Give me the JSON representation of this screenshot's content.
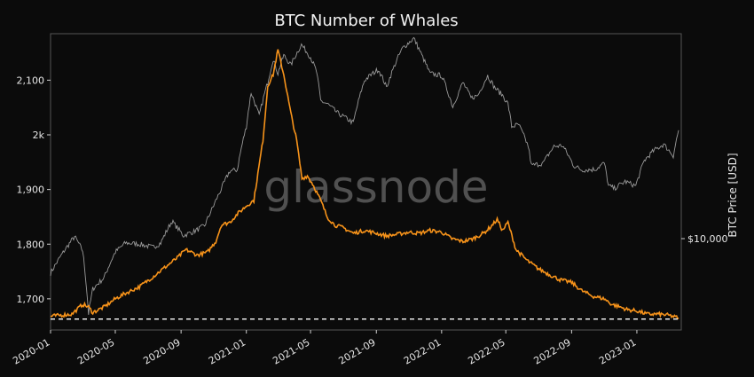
{
  "chart_data": {
    "type": "line",
    "title": "BTC Number of Whales",
    "watermark": "glassnode",
    "xlabel": "",
    "ylabel_left": "",
    "ylabel_right": "BTC Price [USD]",
    "right_ticks": [
      {
        "value": 10000,
        "label": "$10,000"
      }
    ],
    "x_ticks": [
      "2020-01",
      "2020-05",
      "2020-09",
      "2021-01",
      "2021-05",
      "2021-09",
      "2022-01",
      "2022-05",
      "2022-09",
      "2023-01"
    ],
    "y_ticks": [
      {
        "value": 1700,
        "label": "1,700"
      },
      {
        "value": 1800,
        "label": "1,800"
      },
      {
        "value": 1900,
        "label": "1,900"
      },
      {
        "value": 2000,
        "label": "2k"
      },
      {
        "value": 2100,
        "label": "2,100"
      }
    ],
    "ylim": [
      1643,
      2185
    ],
    "xlim": [
      "2020-01-01",
      "2023-03-25"
    ],
    "price_ylim": [
      4200,
      70000
    ],
    "price_scale": "log",
    "grid": false,
    "colors": {
      "whales": "#f7931a",
      "price": "#9a9a9a",
      "baseline": "#ffffff",
      "frame": "#555555"
    },
    "baseline_value": 1663,
    "series": [
      {
        "name": "",
        "role": "whales",
        "x": [
          "2020-01-01",
          "2020-01-20",
          "2020-02-10",
          "2020-03-01",
          "2020-03-12",
          "2020-03-20",
          "2020-04-10",
          "2020-05-01",
          "2020-05-20",
          "2020-06-15",
          "2020-07-10",
          "2020-08-05",
          "2020-08-25",
          "2020-09-10",
          "2020-10-01",
          "2020-10-20",
          "2020-11-05",
          "2020-11-15",
          "2020-12-01",
          "2020-12-15",
          "2021-01-01",
          "2021-01-15",
          "2021-02-01",
          "2021-02-10",
          "2021-02-20",
          "2021-03-01",
          "2021-03-12",
          "2021-03-25",
          "2021-04-05",
          "2021-04-15",
          "2021-04-25",
          "2021-05-05",
          "2021-05-20",
          "2021-06-01",
          "2021-06-15",
          "2021-07-01",
          "2021-07-20",
          "2021-08-10",
          "2021-09-01",
          "2021-09-20",
          "2021-10-10",
          "2021-11-01",
          "2021-11-20",
          "2021-12-10",
          "2022-01-01",
          "2022-01-20",
          "2022-02-10",
          "2022-03-01",
          "2022-03-20",
          "2022-04-01",
          "2022-04-15",
          "2022-04-25",
          "2022-05-05",
          "2022-05-20",
          "2022-06-10",
          "2022-07-01",
          "2022-07-20",
          "2022-08-10",
          "2022-09-01",
          "2022-09-20",
          "2022-10-10",
          "2022-11-01",
          "2022-11-15",
          "2022-12-01",
          "2022-12-15",
          "2023-01-01",
          "2023-01-20",
          "2023-02-10",
          "2023-03-01",
          "2023-03-20"
        ],
        "values": [
          1668,
          1670,
          1672,
          1690,
          1685,
          1675,
          1685,
          1700,
          1710,
          1722,
          1740,
          1760,
          1775,
          1790,
          1780,
          1785,
          1805,
          1835,
          1840,
          1855,
          1870,
          1880,
          1990,
          2090,
          2110,
          2155,
          2110,
          2040,
          1990,
          1920,
          1925,
          1910,
          1880,
          1850,
          1835,
          1830,
          1820,
          1825,
          1820,
          1815,
          1818,
          1822,
          1820,
          1825,
          1822,
          1810,
          1805,
          1810,
          1820,
          1830,
          1845,
          1825,
          1840,
          1790,
          1770,
          1755,
          1745,
          1735,
          1730,
          1715,
          1705,
          1700,
          1690,
          1685,
          1680,
          1678,
          1672,
          1672,
          1670,
          1665
        ]
      },
      {
        "name": "",
        "role": "price",
        "x": [
          "2020-01-01",
          "2020-02-15",
          "2020-03-01",
          "2020-03-12",
          "2020-03-20",
          "2020-04-10",
          "2020-05-01",
          "2020-05-20",
          "2020-06-15",
          "2020-07-10",
          "2020-07-25",
          "2020-08-15",
          "2020-09-05",
          "2020-09-25",
          "2020-10-15",
          "2020-11-01",
          "2020-11-15",
          "2020-12-01",
          "2020-12-15",
          "2021-01-01",
          "2021-01-10",
          "2021-01-25",
          "2021-02-10",
          "2021-02-20",
          "2021-03-01",
          "2021-03-12",
          "2021-03-25",
          "2021-04-14",
          "2021-05-01",
          "2021-05-12",
          "2021-05-20",
          "2021-06-01",
          "2021-06-20",
          "2021-07-20",
          "2021-08-10",
          "2021-09-05",
          "2021-09-20",
          "2021-10-10",
          "2021-10-20",
          "2021-11-10",
          "2021-11-25",
          "2021-12-10",
          "2022-01-01",
          "2022-01-22",
          "2022-02-10",
          "2022-02-25",
          "2022-03-10",
          "2022-03-28",
          "2022-04-10",
          "2022-04-25",
          "2022-05-05",
          "2022-05-12",
          "2022-05-25",
          "2022-06-12",
          "2022-06-18",
          "2022-07-10",
          "2022-07-30",
          "2022-08-15",
          "2022-09-05",
          "2022-09-20",
          "2022-10-15",
          "2022-11-01",
          "2022-11-09",
          "2022-11-20",
          "2022-12-10",
          "2022-12-30",
          "2023-01-15",
          "2023-02-01",
          "2023-02-20",
          "2023-03-10",
          "2023-03-20"
        ],
        "values": [
          7200,
          10200,
          8900,
          4900,
          6200,
          6900,
          8800,
          9600,
          9500,
          9200,
          9600,
          11800,
          10300,
          10700,
          11300,
          13700,
          16000,
          19000,
          19200,
          29000,
          40000,
          32000,
          44000,
          55000,
          48000,
          57000,
          52000,
          63000,
          56000,
          49000,
          37000,
          36000,
          33000,
          30000,
          45000,
          50000,
          42000,
          55000,
          61000,
          67000,
          57000,
          48000,
          47000,
          35000,
          44000,
          38000,
          39000,
          47000,
          42000,
          39000,
          36000,
          29000,
          29500,
          24000,
          20000,
          20500,
          24000,
          24200,
          20000,
          19200,
          19300,
          20500,
          16500,
          16100,
          17200,
          16500,
          21000,
          23000,
          24500,
          22000,
          28000
        ]
      }
    ]
  }
}
